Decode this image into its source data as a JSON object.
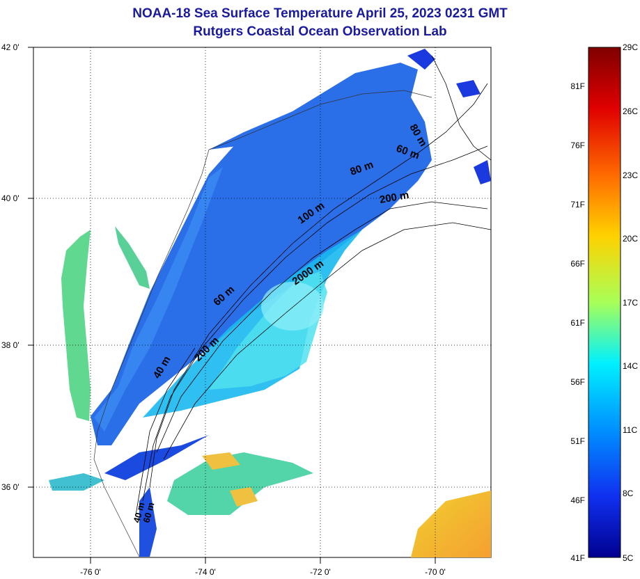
{
  "title": {
    "line1": "NOAA-18 Sea Surface Temperature April 25, 2023 0231 GMT",
    "line2": "Rutgers Coastal Ocean Observation Lab"
  },
  "map": {
    "lat_labels": [
      "42 0'",
      "40 0'",
      "38 0'",
      "36 0'"
    ],
    "lon_labels": [
      "-76 0'",
      "-74 0'",
      "-72 0'",
      "-70 0'"
    ],
    "contour_labels": [
      "40 m",
      "60 m",
      "80 m",
      "200 m",
      "100 m",
      "2000 m",
      "200 m",
      "60 m",
      "80 m",
      "60 m",
      "40 m"
    ],
    "grid": "dotted"
  },
  "colorbar": {
    "fahrenheit_labels": [
      "81F",
      "76F",
      "71F",
      "66F",
      "61F",
      "56F",
      "51F",
      "46F",
      "41F"
    ],
    "celsius_labels": [
      "29C",
      "26C",
      "23C",
      "20C",
      "17C",
      "14C",
      "11C",
      "8C",
      "5C"
    ],
    "colors": [
      "#7f0000",
      "#ff0000",
      "#ff8000",
      "#ffff00",
      "#80ff80",
      "#00ffff",
      "#0080ff",
      "#0000ff",
      "#00008f"
    ]
  }
}
